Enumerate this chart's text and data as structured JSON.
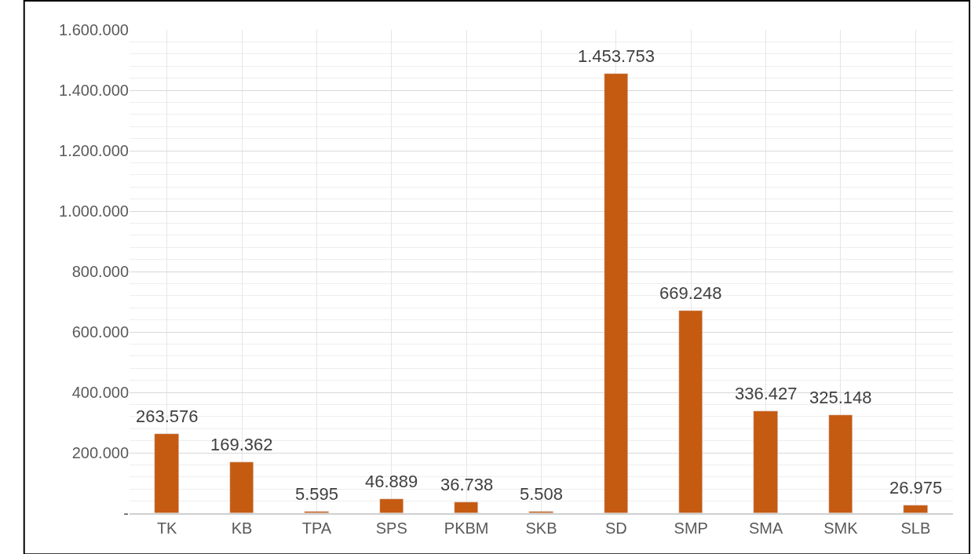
{
  "chart_data": {
    "type": "bar",
    "categories": [
      "TK",
      "KB",
      "TPA",
      "SPS",
      "PKBM",
      "SKB",
      "SD",
      "SMP",
      "SMA",
      "SMK",
      "SLB"
    ],
    "values": [
      263576,
      169362,
      5595,
      46889,
      36738,
      5508,
      1453753,
      669248,
      336427,
      325148,
      26975
    ],
    "value_labels": [
      "263.576",
      "169.362",
      "5.595",
      "46.889",
      "36.738",
      "5.508",
      "1.453.753",
      "669.248",
      "336.427",
      "325.148",
      "26.975"
    ],
    "color": "#c55a11",
    "ylim": [
      0,
      1600000
    ],
    "yticks": [
      {
        "value": 0,
        "label": "-"
      },
      {
        "value": 200000,
        "label": "200.000"
      },
      {
        "value": 400000,
        "label": "400.000"
      },
      {
        "value": 600000,
        "label": "600.000"
      },
      {
        "value": 800000,
        "label": "800.000"
      },
      {
        "value": 1000000,
        "label": "1.000.000"
      },
      {
        "value": 1200000,
        "label": "1.200.000"
      },
      {
        "value": 1400000,
        "label": "1.400.000"
      },
      {
        "value": 1600000,
        "label": "1.600.000"
      }
    ],
    "grid": true
  }
}
